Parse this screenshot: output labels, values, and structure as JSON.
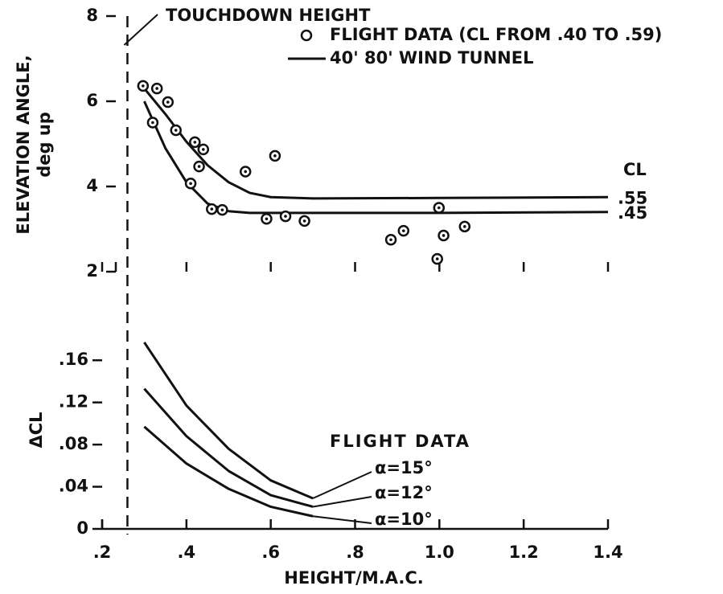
{
  "chart_data": [
    {
      "type": "scatter",
      "ylabel": [
        "ELEVATION ANGLE,",
        "deg up"
      ],
      "xlim": [
        0.2,
        1.4
      ],
      "xticks": [
        0.2,
        0.4,
        0.6,
        0.8,
        1.0,
        1.2,
        1.4
      ],
      "ylim": [
        2,
        8
      ],
      "yticks": [
        2,
        4,
        6,
        8
      ],
      "annotation": "TOUCHDOWN HEIGHT",
      "touchdown_x": 0.26,
      "points": {
        "name": "FLIGHT DATA (CL FROM .40 TO .59)",
        "color": "#111111",
        "x": [
          0.297,
          0.33,
          0.32,
          0.356,
          0.375,
          0.41,
          0.42,
          0.44,
          0.43,
          0.46,
          0.485,
          0.54,
          0.61,
          0.59,
          0.635,
          0.68,
          0.885,
          0.915,
          0.999,
          1.01,
          0.995,
          1.06
        ],
        "y": [
          6.36,
          6.3,
          5.5,
          5.98,
          5.32,
          4.07,
          5.04,
          4.87,
          4.47,
          3.47,
          3.45,
          4.35,
          4.72,
          3.24,
          3.3,
          3.19,
          2.75,
          2.96,
          3.5,
          2.85,
          2.3,
          3.06
        ]
      },
      "line_legend": "40' 80' WIND TUNNEL",
      "line_group_label": "CL",
      "lines": [
        {
          "name": ".55",
          "color": "#111111",
          "x": [
            0.3,
            0.35,
            0.4,
            0.45,
            0.5,
            0.55,
            0.6,
            0.7,
            1.0,
            1.4
          ],
          "y": [
            6.3,
            5.7,
            5.05,
            4.5,
            4.1,
            3.85,
            3.75,
            3.72,
            3.73,
            3.75
          ]
        },
        {
          "name": ".45",
          "color": "#111111",
          "x": [
            0.3,
            0.35,
            0.4,
            0.45,
            0.5,
            0.55,
            0.6,
            0.7,
            1.0,
            1.4
          ],
          "y": [
            6.0,
            4.9,
            4.1,
            3.6,
            3.42,
            3.38,
            3.38,
            3.38,
            3.38,
            3.4
          ]
        }
      ]
    },
    {
      "type": "line",
      "xlabel": "HEIGHT/M.A.C.",
      "ylabel": "ΔCL",
      "xlim": [
        0.2,
        1.4
      ],
      "xticks": [
        {
          "value": 0.2,
          "label": ".2"
        },
        {
          "value": 0.4,
          "label": ".4"
        },
        {
          "value": 0.6,
          "label": ".6"
        },
        {
          "value": 0.8,
          "label": ".8"
        },
        {
          "value": 1.0,
          "label": "1.0"
        },
        {
          "value": 1.2,
          "label": "1.2"
        },
        {
          "value": 1.4,
          "label": "1.4"
        }
      ],
      "ylim": [
        0,
        0.18
      ],
      "yticks": [
        0,
        {
          "value": 0.04,
          "label": ".04"
        },
        {
          "value": 0.08,
          "label": ".08"
        },
        {
          "value": 0.12,
          "label": ".12"
        },
        {
          "value": 0.16,
          "label": ".16"
        }
      ],
      "legend_title": "FLIGHT DATA",
      "x": [
        0.3,
        0.4,
        0.5,
        0.6,
        0.7
      ],
      "series": [
        {
          "name": "α=15°",
          "color": "#111111",
          "values": [
            0.177,
            0.117,
            0.076,
            0.046,
            0.029
          ]
        },
        {
          "name": "α=12°",
          "color": "#111111",
          "values": [
            0.133,
            0.088,
            0.055,
            0.032,
            0.021
          ]
        },
        {
          "name": "α=10°",
          "color": "#111111",
          "values": [
            0.097,
            0.062,
            0.038,
            0.021,
            0.012
          ]
        }
      ]
    }
  ]
}
